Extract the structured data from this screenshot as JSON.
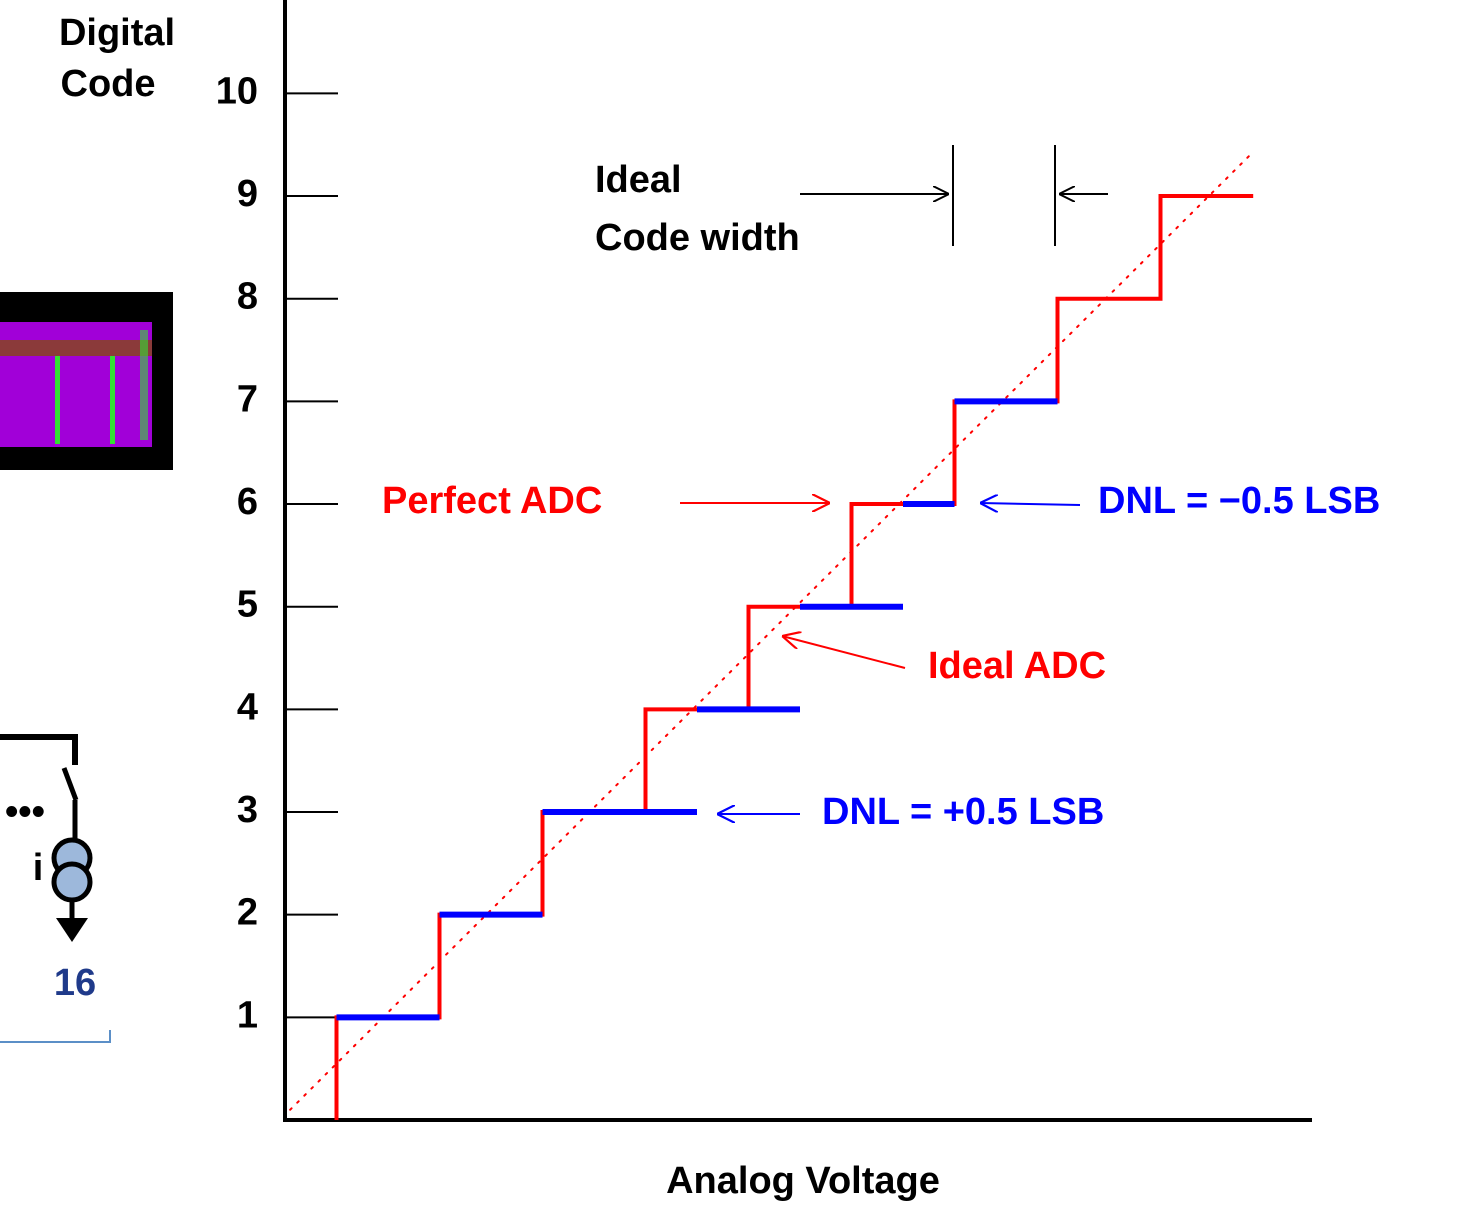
{
  "chart_data": {
    "type": "staircase",
    "y_label": [
      "Digital",
      "Code"
    ],
    "x_label": "Analog Voltage",
    "xlim": [
      0.5,
      10.5
    ],
    "ylim": [
      0,
      10.9
    ],
    "yticks": [
      1,
      2,
      3,
      4,
      5,
      6,
      7,
      8,
      9,
      10
    ],
    "perfect": {
      "color": "#ff0000",
      "x": [
        1,
        1,
        2,
        2,
        3,
        3,
        4,
        4,
        5,
        5,
        6,
        6,
        7,
        7,
        8,
        8,
        9,
        9,
        9.9
      ],
      "values": [
        0,
        1,
        1,
        2,
        2,
        3,
        3,
        4,
        4,
        5,
        5,
        6,
        6,
        7,
        7,
        8,
        8,
        9,
        9
      ]
    },
    "actual": {
      "color": "#0000ff",
      "x_start": [
        1,
        2,
        3,
        4.5,
        5.5,
        6.5,
        7
      ],
      "x_end": [
        2,
        3,
        4.5,
        5.5,
        6.5,
        7,
        8
      ],
      "values": [
        1,
        2,
        3,
        4,
        5,
        6,
        7
      ]
    },
    "ideal": {
      "color": "#ff0000",
      "x": [
        0.55,
        9.87
      ],
      "values": [
        0.1,
        9.4
      ]
    },
    "annotations": {
      "ideal_code_width": [
        "Ideal",
        "Code width"
      ],
      "perfect_adc": "Perfect ADC",
      "ideal_adc": "Ideal ADC",
      "dnl_neg": "DNL = −0.5 LSB",
      "dnl_pos": "DNL = +0.5 LSB"
    }
  },
  "left_fragments": {
    "ellipsis": "•••",
    "current": "i",
    "count": "16"
  }
}
